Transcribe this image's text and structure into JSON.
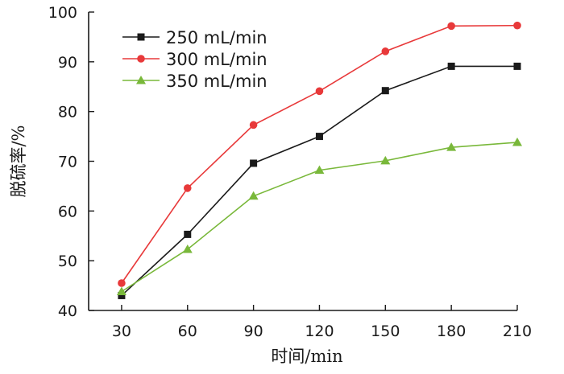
{
  "chart_data": {
    "type": "line",
    "title": "",
    "xlabel": "时间/min",
    "ylabel": "脱硫率/%",
    "x": [
      30,
      60,
      90,
      120,
      150,
      180,
      210
    ],
    "xlim": [
      15,
      210
    ],
    "ylim": [
      40,
      100
    ],
    "xticks": [
      "30",
      "60",
      "90",
      "120",
      "150",
      "180",
      "210"
    ],
    "yticks": [
      "40",
      "50",
      "60",
      "70",
      "80",
      "90",
      "100"
    ],
    "grid": false,
    "legend": "top-left",
    "series": [
      {
        "name": "250 mL/min",
        "color": "#1a1a1a",
        "marker": "square",
        "values": [
          43.0,
          55.3,
          69.6,
          75.0,
          84.2,
          89.1,
          89.1
        ]
      },
      {
        "name": "300 mL/min",
        "color": "#e8393a",
        "marker": "circle",
        "values": [
          45.5,
          64.6,
          77.3,
          84.1,
          92.1,
          97.2,
          97.3
        ]
      },
      {
        "name": "350 mL/min",
        "color": "#79b83a",
        "marker": "triangle",
        "values": [
          43.8,
          52.3,
          63.0,
          68.2,
          70.1,
          72.8,
          73.8
        ]
      }
    ]
  }
}
